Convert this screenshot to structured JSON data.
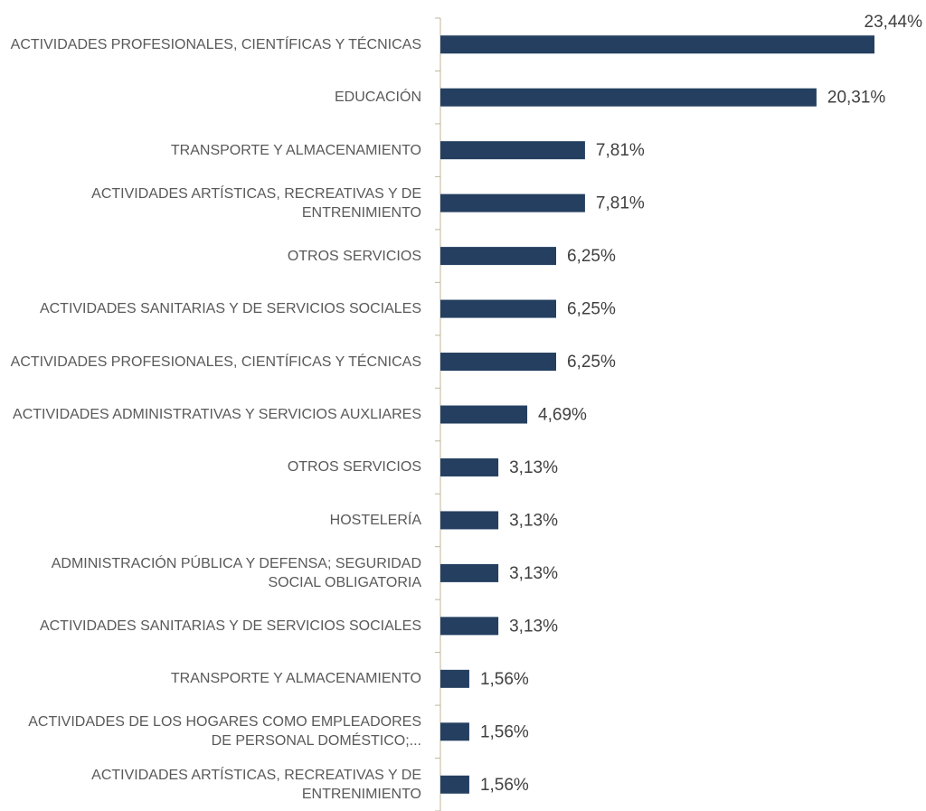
{
  "chart_data": {
    "type": "bar",
    "orientation": "horizontal",
    "color": "#243f60",
    "categories": [
      "ACTIVIDADES PROFESIONALES, CIENTÍFICAS Y TÉCNICAS",
      "EDUCACIÓN",
      "TRANSPORTE Y ALMACENAMIENTO",
      "ACTIVIDADES ARTÍSTICAS, RECREATIVAS Y DE ENTRENIMIENTO",
      "OTROS SERVICIOS",
      "ACTIVIDADES SANITARIAS Y DE SERVICIOS SOCIALES",
      "ACTIVIDADES PROFESIONALES, CIENTÍFICAS Y TÉCNICAS",
      "ACTIVIDADES ADMINISTRATIVAS Y SERVICIOS AUXLIARES",
      "OTROS SERVICIOS",
      "HOSTELERÍA",
      "ADMINISTRACIÓN PÚBLICA Y DEFENSA; SEGURIDAD SOCIAL OBLIGATORIA",
      "ACTIVIDADES SANITARIAS Y DE SERVICIOS SOCIALES",
      "TRANSPORTE Y ALMACENAMIENTO",
      "ACTIVIDADES DE LOS HOGARES COMO EMPLEADORES DE PERSONAL DOMÉSTICO;...",
      "ACTIVIDADES ARTÍSTICAS, RECREATIVAS Y DE ENTRENIMIENTO"
    ],
    "values": [
      23.44,
      20.31,
      7.81,
      7.81,
      6.25,
      6.25,
      6.25,
      4.69,
      3.13,
      3.13,
      3.13,
      3.13,
      1.56,
      1.56,
      1.56
    ],
    "value_labels": [
      "23,44%",
      "20,31%",
      "7,81%",
      "7,81%",
      "6,25%",
      "6,25%",
      "6,25%",
      "4,69%",
      "3,13%",
      "3,13%",
      "3,13%",
      "3,13%",
      "1,56%",
      "1,56%",
      "1,56%"
    ]
  }
}
